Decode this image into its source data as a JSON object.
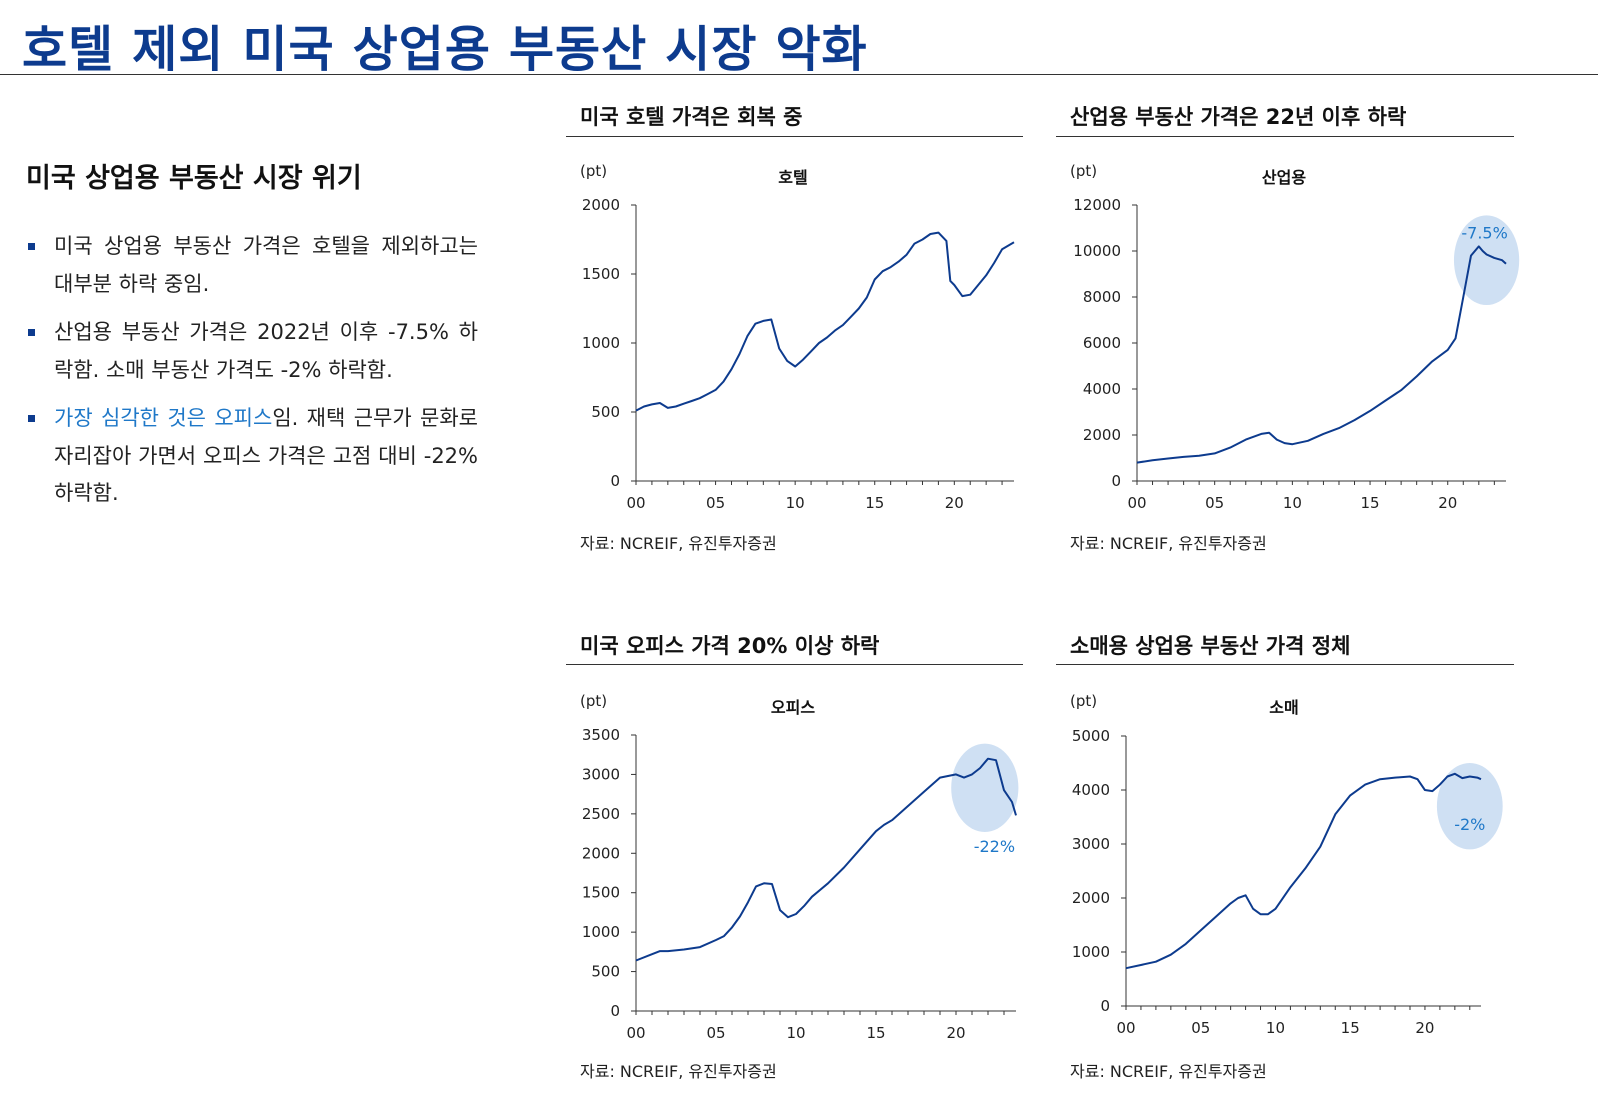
{
  "page": {
    "title": "호텔 제외 미국 상업용 부동산 시장 악화",
    "section_heading": "미국 상업용 부동산 시장 위기",
    "bullets": [
      {
        "text": "미국 상업용 부동산 가격은 호텔을 제외하고는 대부분 하락 중임."
      },
      {
        "text": "산업용 부동산 가격은 2022년 이후 -7.5% 하락함. 소매 부동산 가격도 -2% 하락함."
      },
      {
        "highlight": "가장 심각한 것은 오피스",
        "text": "임. 재택 근무가 문화로 자리잡아 가면서 오피스 가격은 고점 대비 -22% 하락함."
      }
    ],
    "source": "자료: NCREIF, 유진투자증권"
  },
  "colors": {
    "title": "#0d3b8e",
    "line": "#0d3b8e",
    "highlight_text": "#1f78c8",
    "ellipse": "#cfe0f3"
  },
  "chart_data": [
    {
      "id": "hotel",
      "type": "line",
      "panel_title": "미국 호텔 가격은 회복 중",
      "title": "호텔",
      "ylabel": "(pt)",
      "x_ticks": [
        "00",
        "05",
        "10",
        "15",
        "20"
      ],
      "xlim": [
        0,
        23.75
      ],
      "yticks": [
        "0",
        "500",
        "1000",
        "1500",
        "2000"
      ],
      "ylim": [
        0,
        2000
      ],
      "series": [
        {
          "name": "호텔",
          "x": [
            0,
            0.5,
            1,
            1.5,
            2,
            2.5,
            3,
            3.5,
            4,
            4.5,
            5,
            5.5,
            6,
            6.5,
            7,
            7.5,
            8,
            8.5,
            9,
            9.5,
            10,
            10.5,
            11,
            11.5,
            12,
            12.5,
            13,
            13.5,
            14,
            14.5,
            15,
            15.5,
            16,
            16.5,
            17,
            17.5,
            18,
            18.5,
            19,
            19.5,
            19.75,
            20,
            20.5,
            21,
            21.5,
            22,
            22.5,
            23,
            23.75
          ],
          "values": [
            510,
            540,
            555,
            565,
            530,
            540,
            560,
            580,
            600,
            630,
            660,
            720,
            810,
            920,
            1050,
            1140,
            1160,
            1170,
            960,
            870,
            830,
            880,
            940,
            1000,
            1040,
            1090,
            1130,
            1190,
            1250,
            1330,
            1460,
            1520,
            1550,
            1590,
            1640,
            1720,
            1750,
            1790,
            1800,
            1740,
            1450,
            1420,
            1340,
            1350,
            1420,
            1490,
            1580,
            1680,
            1730
          ]
        }
      ],
      "annotation": null
    },
    {
      "id": "industrial",
      "type": "line",
      "panel_title": "산업용 부동산 가격은 22년 이후 하락",
      "title": "산업용",
      "ylabel": "(pt)",
      "x_ticks": [
        "00",
        "05",
        "10",
        "15",
        "20"
      ],
      "xlim": [
        0,
        23.75
      ],
      "yticks": [
        "0",
        "2000",
        "4000",
        "6000",
        "8000",
        "10000",
        "12000"
      ],
      "ylim": [
        0,
        12000
      ],
      "series": [
        {
          "name": "산업용",
          "x": [
            0,
            1,
            2,
            3,
            4,
            5,
            6,
            7,
            8,
            8.5,
            9,
            9.5,
            10,
            11,
            12,
            13,
            14,
            15,
            16,
            17,
            18,
            19,
            20,
            20.5,
            21,
            21.5,
            22,
            22.25,
            22.5,
            23,
            23.5,
            23.75
          ],
          "values": [
            800,
            900,
            980,
            1050,
            1100,
            1200,
            1450,
            1800,
            2050,
            2100,
            1800,
            1650,
            1600,
            1750,
            2050,
            2300,
            2650,
            3050,
            3500,
            3950,
            4550,
            5200,
            5700,
            6200,
            8000,
            9800,
            10200,
            10000,
            9850,
            9700,
            9600,
            9450
          ]
        }
      ],
      "annotation": {
        "label": "-7.5%",
        "x": 22.5,
        "y": 9600,
        "rx": 2.1,
        "ry": 1950
      }
    },
    {
      "id": "office",
      "type": "line",
      "panel_title": "미국 오피스 가격 20% 이상 하락",
      "title": "오피스",
      "ylabel": "(pt)",
      "x_ticks": [
        "00",
        "05",
        "10",
        "15",
        "20"
      ],
      "xlim": [
        0,
        23.75
      ],
      "yticks": [
        "0",
        "500",
        "1000",
        "1500",
        "2000",
        "2500",
        "3000",
        "3500"
      ],
      "ylim": [
        0,
        3500
      ],
      "series": [
        {
          "name": "오피스",
          "x": [
            0,
            1,
            1.5,
            2,
            3,
            4,
            5,
            5.5,
            6,
            6.5,
            7,
            7.5,
            8,
            8.5,
            9,
            9.5,
            10,
            10.5,
            11,
            12,
            13,
            14,
            15,
            15.5,
            16,
            17,
            18,
            19,
            20,
            20.5,
            21,
            21.5,
            22,
            22.5,
            23,
            23.5,
            23.75
          ],
          "values": [
            640,
            720,
            760,
            760,
            780,
            810,
            900,
            950,
            1060,
            1200,
            1380,
            1580,
            1620,
            1610,
            1280,
            1190,
            1230,
            1330,
            1450,
            1620,
            1820,
            2050,
            2280,
            2360,
            2420,
            2600,
            2780,
            2960,
            3000,
            2960,
            3000,
            3080,
            3200,
            3180,
            2800,
            2650,
            2480
          ]
        }
      ],
      "annotation": {
        "label": "-22%",
        "x": 21.8,
        "y": 2830,
        "rx": 2.1,
        "ry": 560
      }
    },
    {
      "id": "retail",
      "type": "line",
      "panel_title": "소매용 상업용 부동산 가격 정체",
      "title": "소매",
      "ylabel": "(pt)",
      "x_ticks": [
        "00",
        "05",
        "10",
        "15",
        "20"
      ],
      "xlim": [
        0,
        23.75
      ],
      "yticks": [
        "0",
        "1000",
        "2000",
        "3000",
        "4000",
        "5000"
      ],
      "ylim": [
        0,
        5000
      ],
      "series": [
        {
          "name": "소매",
          "x": [
            0,
            1,
            2,
            3,
            4,
            5,
            6,
            7,
            7.5,
            8,
            8.5,
            9,
            9.5,
            10,
            11,
            12,
            13,
            14,
            15,
            16,
            17,
            18,
            19,
            19.5,
            20,
            20.5,
            21,
            21.5,
            22,
            22.5,
            23,
            23.5,
            23.75
          ],
          "values": [
            700,
            760,
            820,
            950,
            1150,
            1400,
            1650,
            1900,
            2000,
            2050,
            1800,
            1700,
            1700,
            1800,
            2200,
            2550,
            2950,
            3550,
            3900,
            4100,
            4200,
            4230,
            4250,
            4200,
            4000,
            3980,
            4100,
            4250,
            4300,
            4220,
            4250,
            4230,
            4200
          ]
        }
      ],
      "annotation": {
        "label": "-2%",
        "x": 23.0,
        "y": 3700,
        "rx": 2.2,
        "ry": 800
      }
    }
  ]
}
